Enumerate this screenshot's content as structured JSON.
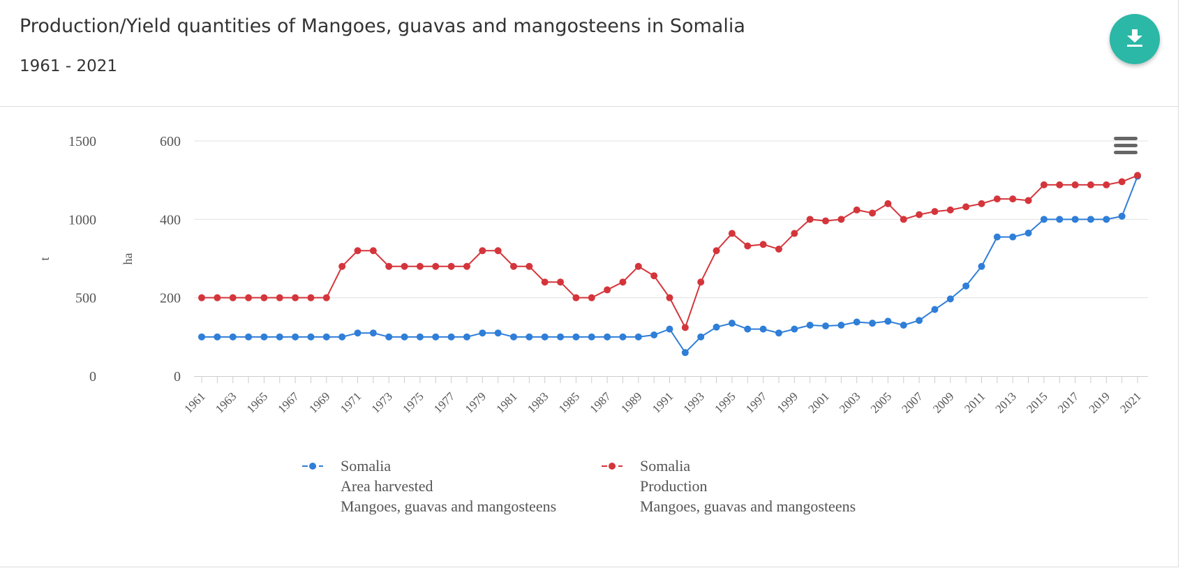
{
  "header": {
    "title": "Production/Yield quantities of Mangoes, guavas and mangosteens in Somalia",
    "subtitle": "1961 - 2021",
    "download_icon": "download-icon"
  },
  "menu_icon": "hamburger-menu-icon",
  "chart_data": {
    "type": "line",
    "title": "Production/Yield quantities of Mangoes, guavas and mangosteens in Somalia",
    "subtitle": "1961 - 2021",
    "x": [
      1961,
      1962,
      1963,
      1964,
      1965,
      1966,
      1967,
      1968,
      1969,
      1970,
      1971,
      1972,
      1973,
      1974,
      1975,
      1976,
      1977,
      1978,
      1979,
      1980,
      1981,
      1982,
      1983,
      1984,
      1985,
      1986,
      1987,
      1988,
      1989,
      1990,
      1991,
      1992,
      1993,
      1994,
      1995,
      1996,
      1997,
      1998,
      1999,
      2000,
      2001,
      2002,
      2003,
      2004,
      2005,
      2006,
      2007,
      2008,
      2009,
      2010,
      2011,
      2012,
      2013,
      2014,
      2015,
      2016,
      2017,
      2018,
      2019,
      2020,
      2021
    ],
    "x_tick_labels": [
      "1961",
      "1963",
      "1965",
      "1967",
      "1969",
      "1971",
      "1973",
      "1975",
      "1977",
      "1979",
      "1981",
      "1983",
      "1985",
      "1987",
      "1989",
      "1991",
      "1993",
      "1995",
      "1997",
      "1999",
      "2001",
      "2003",
      "2005",
      "2007",
      "2009",
      "2011",
      "2013",
      "2015",
      "2017",
      "2019",
      "2021"
    ],
    "axes": {
      "left": {
        "label": "t",
        "ylim": [
          0,
          1500
        ],
        "ticks": [
          "0",
          "500",
          "1000",
          "1500"
        ]
      },
      "right": {
        "label": "ha",
        "ylim": [
          0,
          600
        ],
        "ticks": [
          "0",
          "200",
          "400",
          "600"
        ]
      }
    },
    "series": [
      {
        "name": "Somalia",
        "element": "Area harvested",
        "item": "Mangoes, guavas and mangosteens",
        "axis": "ha",
        "color": "#2f7ed8",
        "values": [
          100,
          100,
          100,
          100,
          100,
          100,
          100,
          100,
          100,
          100,
          110,
          110,
          100,
          100,
          100,
          100,
          100,
          100,
          110,
          110,
          100,
          100,
          100,
          100,
          100,
          100,
          100,
          100,
          100,
          105,
          120,
          60,
          100,
          125,
          135,
          120,
          120,
          110,
          120,
          130,
          128,
          130,
          138,
          135,
          140,
          130,
          142,
          170,
          197,
          230,
          280,
          355,
          355,
          365,
          400,
          400,
          400,
          400,
          400,
          408,
          510
        ]
      },
      {
        "name": "Somalia",
        "element": "Production",
        "item": "Mangoes, guavas and mangosteens",
        "axis": "t",
        "color": "#d4353b",
        "values": [
          500,
          500,
          500,
          500,
          500,
          500,
          500,
          500,
          500,
          700,
          800,
          800,
          700,
          700,
          700,
          700,
          700,
          700,
          800,
          800,
          700,
          700,
          600,
          600,
          500,
          500,
          550,
          600,
          700,
          640,
          500,
          310,
          600,
          800,
          910,
          830,
          840,
          810,
          910,
          1000,
          990,
          1000,
          1060,
          1040,
          1100,
          1000,
          1030,
          1050,
          1060,
          1080,
          1100,
          1130,
          1130,
          1120,
          1220,
          1220,
          1220,
          1220,
          1220,
          1240,
          1280
        ]
      }
    ],
    "legend": [
      {
        "name": "Somalia",
        "element": "Area harvested",
        "item": "Mangoes, guavas and mangosteens"
      },
      {
        "name": "Somalia",
        "element": "Production",
        "item": "Mangoes, guavas and mangosteens"
      }
    ],
    "grid": true,
    "legend_position": "bottom-center"
  }
}
